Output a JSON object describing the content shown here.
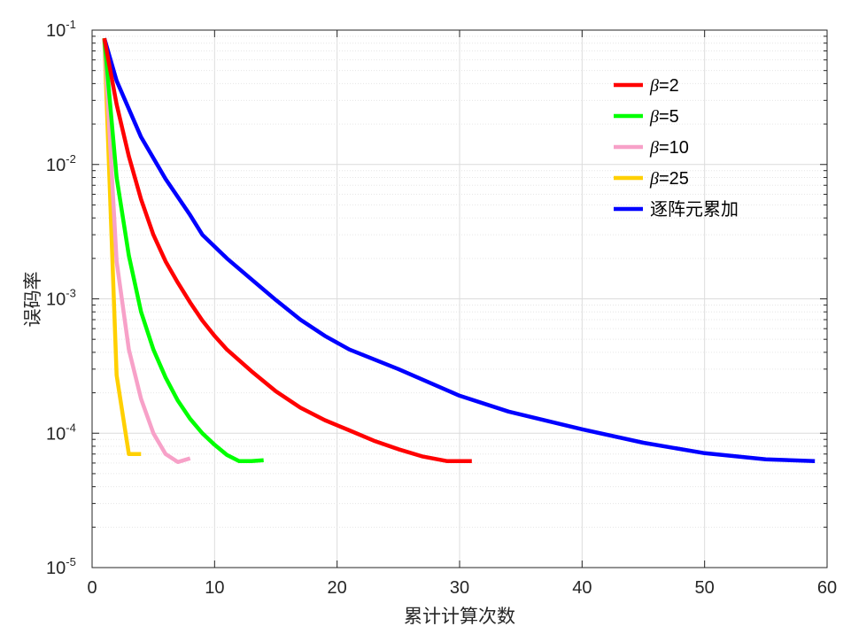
{
  "chart_data": {
    "type": "line",
    "title": "",
    "xlabel": "累计计算次数",
    "ylabel": "误码率",
    "xlim": [
      0,
      60
    ],
    "ylim": [
      1e-05,
      0.1
    ],
    "yscale": "log",
    "xticks": [
      0,
      10,
      20,
      30,
      40,
      50,
      60
    ],
    "yticks": [
      {
        "value": 0.1,
        "base": "10",
        "exp": "-1"
      },
      {
        "value": 0.01,
        "base": "10",
        "exp": "-2"
      },
      {
        "value": 0.001,
        "base": "10",
        "exp": "-3"
      },
      {
        "value": 0.0001,
        "base": "10",
        "exp": "-4"
      },
      {
        "value": 1e-05,
        "base": "10",
        "exp": "-5"
      }
    ],
    "grid": true,
    "legend_position": "top-right",
    "series": [
      {
        "name": "β=2",
        "legend_symbol": "β",
        "legend_suffix": "=2",
        "color": "#ff0000",
        "x": [
          1,
          2,
          3,
          4,
          5,
          6,
          7,
          8,
          9,
          10,
          11,
          13,
          15,
          17,
          19,
          21,
          23,
          25,
          27,
          29,
          31
        ],
        "y": [
          0.087,
          0.028,
          0.0115,
          0.0055,
          0.003,
          0.0019,
          0.00132,
          0.00094,
          0.00069,
          0.00053,
          0.00042,
          0.00029,
          0.000205,
          0.000155,
          0.000125,
          0.000105,
          8.8e-05,
          7.6e-05,
          6.7e-05,
          6.2e-05,
          6.2e-05
        ]
      },
      {
        "name": "β=5",
        "legend_symbol": "β",
        "legend_suffix": "=5",
        "color": "#00ff00",
        "x": [
          1,
          2,
          3,
          4,
          5,
          6,
          7,
          8,
          9,
          10,
          11,
          12,
          13,
          14
        ],
        "y": [
          0.087,
          0.008,
          0.0021,
          0.0008,
          0.00042,
          0.00026,
          0.000175,
          0.000128,
          0.0001,
          8.2e-05,
          6.9e-05,
          6.2e-05,
          6.2e-05,
          6.3e-05
        ]
      },
      {
        "name": "β=10",
        "legend_symbol": "β",
        "legend_suffix": "=10",
        "color": "#f7a1c8",
        "x": [
          1,
          2,
          3,
          4,
          5,
          6,
          7,
          8
        ],
        "y": [
          0.087,
          0.0019,
          0.00042,
          0.00018,
          0.0001,
          7e-05,
          6.1e-05,
          6.5e-05
        ]
      },
      {
        "name": "β=25",
        "legend_symbol": "β",
        "legend_suffix": "=25",
        "color": "#ffd000",
        "x": [
          1,
          2,
          3,
          4
        ],
        "y": [
          0.087,
          0.00027,
          7e-05,
          7e-05
        ]
      },
      {
        "name": "逐阵元累加",
        "legend_symbol": "",
        "legend_suffix": "逐阵元累加",
        "color": "#0000ff",
        "x": [
          1,
          2,
          4,
          6,
          8,
          9,
          11,
          13,
          15,
          17,
          19,
          21,
          25,
          30,
          34,
          40,
          45,
          50,
          55,
          59
        ],
        "y": [
          0.087,
          0.042,
          0.016,
          0.0078,
          0.0042,
          0.003,
          0.002,
          0.0014,
          0.00098,
          0.0007,
          0.00053,
          0.00042,
          0.0003,
          0.00019,
          0.000145,
          0.000107,
          8.5e-05,
          7.1e-05,
          6.4e-05,
          6.2e-05
        ]
      }
    ]
  }
}
